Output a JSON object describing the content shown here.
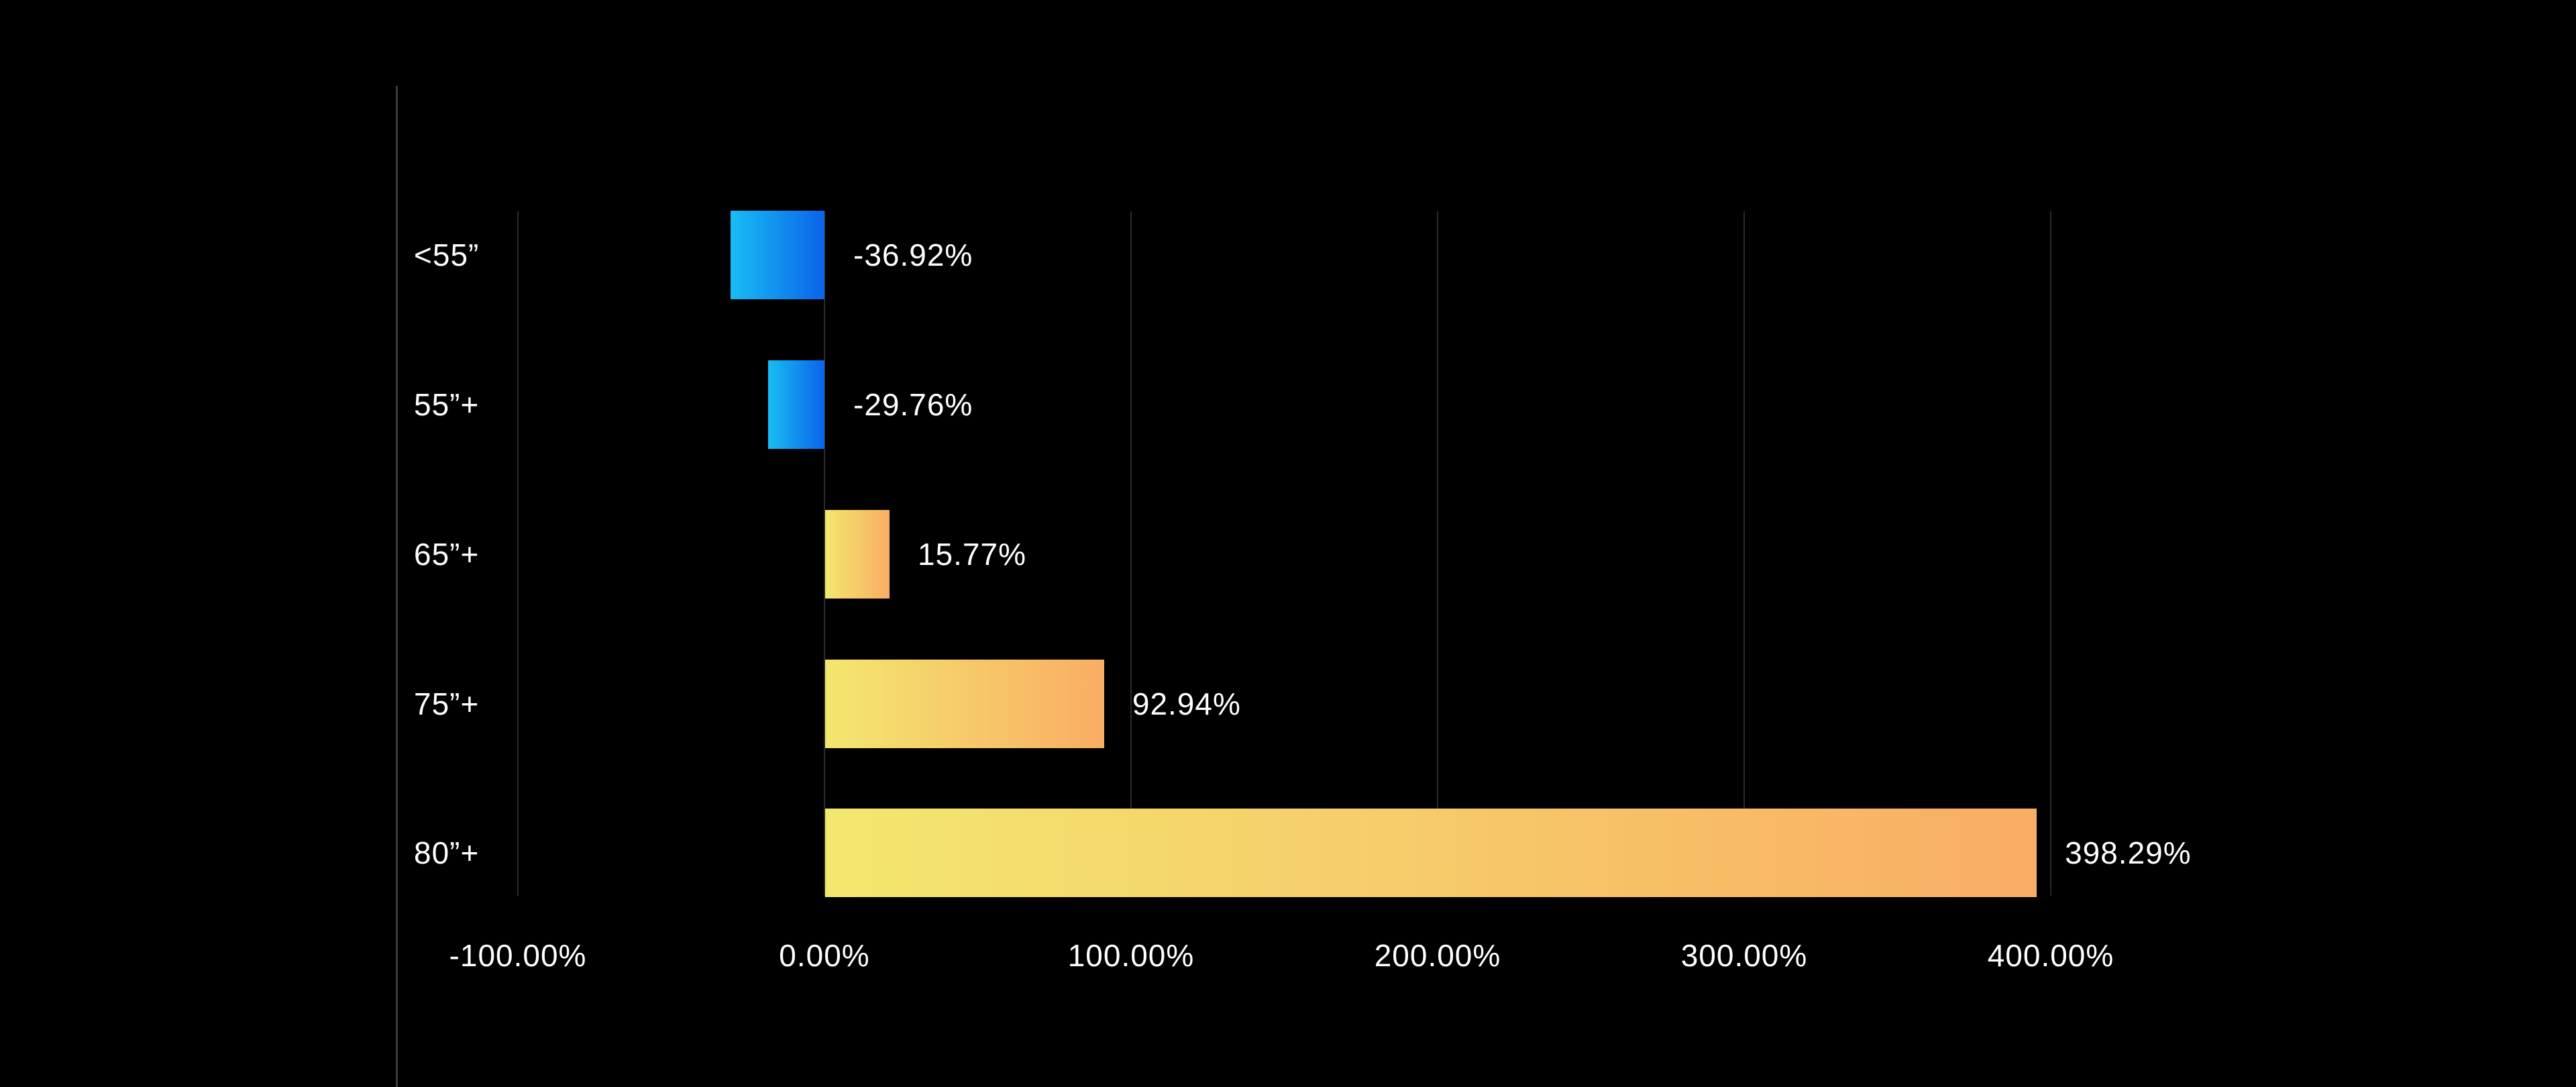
{
  "chart_data": {
    "type": "bar",
    "orientation": "horizontal",
    "title": "",
    "categories": [
      "<55”",
      "55”+",
      "65”+",
      "75”+",
      "80”+"
    ],
    "values": [
      -36.92,
      -29.76,
      15.77,
      92.94,
      398.29
    ],
    "value_labels": [
      "-36.92%",
      "-29.76%",
      "15.77%",
      "92.94%",
      "398.29%"
    ],
    "display_extents_pct": [
      -30.6,
      -18.4,
      21.0,
      91.0,
      395.2
    ],
    "x_axis": {
      "ticks": [
        -100,
        0,
        100,
        200,
        300,
        400
      ],
      "tick_labels": [
        "-100.00%",
        "0.00%",
        "100.00%",
        "200.00%",
        "300.00%",
        "400.00%"
      ]
    },
    "xlim": [
      -139,
      571
    ],
    "grid": true,
    "legend": false,
    "colors": {
      "background": "#000000",
      "text": "#ffffff",
      "gridline": "#2b2b2b",
      "axis_line": "#3a3a3a",
      "negative_bar_gradient": [
        "#18bdf4",
        "#0b63e9"
      ],
      "positive_bar_gradient": [
        "#f3e76f",
        "#f9ad64"
      ]
    }
  }
}
